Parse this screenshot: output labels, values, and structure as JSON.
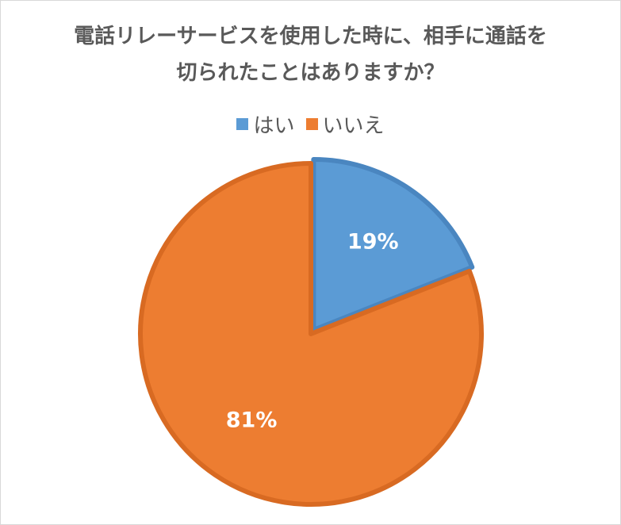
{
  "chart_data": {
    "type": "pie",
    "title_lines": [
      "電話リレーサービスを使用した時に、相手に通話を",
      "切られたことはありますか？"
    ],
    "legend_position": "top",
    "slices": [
      {
        "name": "はい",
        "value": 19,
        "label": "19%",
        "color": "#5b9bd5",
        "edge": "#4a86c0"
      },
      {
        "name": "いいえ",
        "value": 81,
        "label": "81%",
        "color": "#ed7d31",
        "edge": "#d86a22"
      }
    ]
  }
}
